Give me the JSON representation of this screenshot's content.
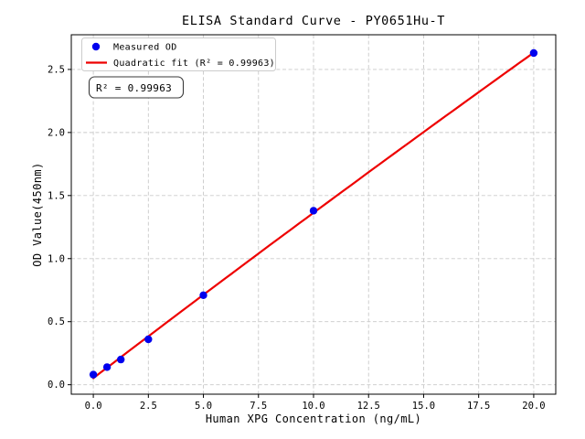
{
  "chart_data": {
    "type": "scatter",
    "title": "ELISA Standard Curve - PY0651Hu-T",
    "xlabel": "Human XPG Concentration (ng/mL)",
    "ylabel": "OD Value(450nm)",
    "x_ticks": [
      0,
      2.5,
      5,
      7.5,
      10,
      12.5,
      15,
      17.5,
      20
    ],
    "y_ticks": [
      0,
      0.5,
      1,
      1.5,
      2,
      2.5
    ],
    "xlim": [
      -1,
      21
    ],
    "ylim": [
      -0.075,
      2.775
    ],
    "grid": true,
    "grid_style": "dashed",
    "legend_position": "upper-left",
    "series": [
      {
        "name": "Measured OD",
        "type": "scatter",
        "color": "#0000ee",
        "x": [
          0,
          0.625,
          1.25,
          2.5,
          5,
          10,
          20
        ],
        "y": [
          0.08,
          0.14,
          0.2,
          0.36,
          0.71,
          1.38,
          2.63
        ]
      },
      {
        "name": "Quadratic fit (R² = 0.99963)",
        "type": "fit-line",
        "fit": "quadratic",
        "color": "#ee0000",
        "r_squared": 0.99963
      }
    ],
    "annotation": {
      "text": "R² = 0.99963"
    }
  }
}
